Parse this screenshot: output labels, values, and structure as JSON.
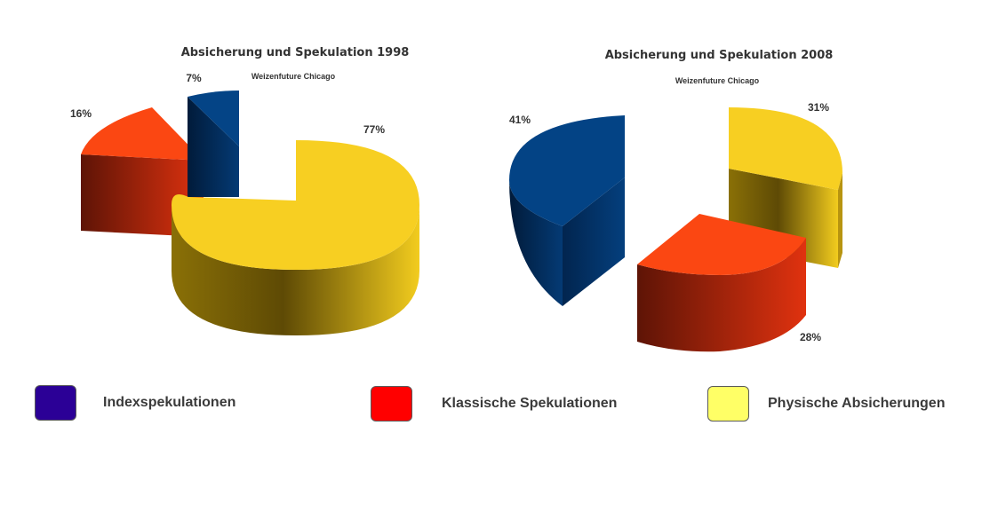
{
  "colors": {
    "index": "#2b0096",
    "classic": "#ff0000",
    "physical": "#ffff66"
  },
  "legend": [
    {
      "key": "index",
      "label": "Indexspekulationen"
    },
    {
      "key": "classic",
      "label": "Klassische Spekulationen"
    },
    {
      "key": "physical",
      "label": "Physische Absicherungen"
    }
  ],
  "chart_data": [
    {
      "type": "pie",
      "title": "Absicherung und Spekulation 1998",
      "subtitle": "Weizenfuture Chicago",
      "categories": [
        "Indexspekulationen",
        "Klassische Spekulationen",
        "Physische Absicherungen"
      ],
      "values": [
        7,
        16,
        77
      ],
      "data_labels": [
        "7%",
        "16%",
        "77%"
      ],
      "exploded": true
    },
    {
      "type": "pie",
      "title": "Absicherung und Spekulation 2008",
      "subtitle": "Weizenfuture Chicago",
      "categories": [
        "Indexspekulationen",
        "Klassische Spekulationen",
        "Physische Absicherungen"
      ],
      "values": [
        41,
        28,
        31
      ],
      "data_labels": [
        "41%",
        "28%",
        "31%"
      ],
      "exploded": true
    }
  ]
}
